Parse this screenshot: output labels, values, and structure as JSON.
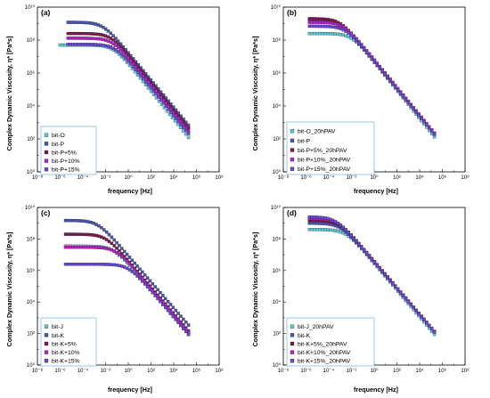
{
  "chart_data": [
    {
      "type": "scatter",
      "label": "(a)",
      "xlabel": "frequency [Hz]",
      "ylabel": "Complex Dynamic Viscosity, η* [Pa*s]",
      "xscale": "log",
      "yscale": "log",
      "xlim": [
        1e-08,
        100000000.0
      ],
      "ylim": [
        1,
        10000000000.0
      ],
      "x_ticks": [
        "10⁻⁸",
        "10⁻⁶",
        "10⁻⁴",
        "10⁻²",
        "10⁰",
        "10²",
        "10⁴",
        "10⁶",
        "10⁸"
      ],
      "y_ticks": [
        "10⁰",
        "10²",
        "10⁴",
        "10⁶",
        "10⁸",
        "10¹⁰"
      ],
      "legend_position": "bottom-left",
      "series": [
        {
          "name": "bit-O",
          "color": "#5bc8d6",
          "plateau": 50000000.0,
          "knee": 0.05,
          "slope": 0.85,
          "xmin": 1e-06,
          "xmax": 200000.0
        },
        {
          "name": "bit-P",
          "color": "#4a55b0",
          "plateau": 1200000000.0,
          "knee": 0.006,
          "slope": 0.83,
          "xmin": 5e-06,
          "xmax": 200000.0
        },
        {
          "name": "bit-P+5%",
          "color": "#7a1a4e",
          "plateau": 250000000.0,
          "knee": 0.03,
          "slope": 0.84,
          "xmin": 5e-06,
          "xmax": 200000.0
        },
        {
          "name": "bit-P+10%",
          "color": "#b522c8",
          "plateau": 130000000.0,
          "knee": 0.04,
          "slope": 0.84,
          "xmin": 5e-06,
          "xmax": 200000.0
        },
        {
          "name": "bit-P+15%",
          "color": "#6b47d6",
          "plateau": 55000000.0,
          "knee": 0.07,
          "slope": 0.84,
          "xmin": 5e-06,
          "xmax": 200000.0
        }
      ]
    },
    {
      "type": "scatter",
      "label": "(b)",
      "xlabel": "frequency [Hz]",
      "ylabel": "Complex Dynamic Viscosity, η* [Pa*s]",
      "xscale": "log",
      "yscale": "log",
      "xlim": [
        1e-08,
        100000000.0
      ],
      "ylim": [
        1,
        10000000000.0
      ],
      "x_ticks": [
        "10⁻⁸",
        "10⁻⁶",
        "10⁻⁴",
        "10⁻²",
        "10⁰",
        "10²",
        "10⁴",
        "10⁶",
        "10⁸"
      ],
      "y_ticks": [
        "10⁰",
        "10²",
        "10⁴",
        "10⁶",
        "10⁸",
        "10¹⁰"
      ],
      "legend_position": "bottom-left",
      "series": [
        {
          "name": "bit-O_20hPAV",
          "color": "#5bc8d6",
          "plateau": 250000000.0,
          "knee": 0.01,
          "slope": 0.86,
          "xmin": 2e-06,
          "xmax": 200000.0
        },
        {
          "name": "bit-P",
          "color": "#4a55b0",
          "plateau": 1500000000.0,
          "knee": 0.001,
          "slope": 0.83,
          "xmin": 2e-06,
          "xmax": 200000.0
        },
        {
          "name": "bit-P+5%_20hPAV",
          "color": "#7a1a4e",
          "plateau": 2000000000.0,
          "knee": 0.001,
          "slope": 0.84,
          "xmin": 2e-06,
          "xmax": 200000.0
        },
        {
          "name": "bit-P+10%_20hPAV",
          "color": "#b522c8",
          "plateau": 1200000000.0,
          "knee": 0.002,
          "slope": 0.84,
          "xmin": 2e-06,
          "xmax": 200000.0
        },
        {
          "name": "bit-P+15%_20hPAV",
          "color": "#6b47d6",
          "plateau": 700000000.0,
          "knee": 0.003,
          "slope": 0.84,
          "xmin": 2e-06,
          "xmax": 200000.0
        }
      ]
    },
    {
      "type": "scatter",
      "label": "(c)",
      "xlabel": "frequency [Hz]",
      "ylabel": "Complex Dynamic Viscosity, η* [Pa*s]",
      "xscale": "log",
      "yscale": "log",
      "xlim": [
        1e-08,
        100000000.0
      ],
      "ylim": [
        1,
        10000000000.0
      ],
      "x_ticks": [
        "10⁻⁸",
        "10⁻⁶",
        "10⁻⁴",
        "10⁻²",
        "10⁰",
        "10²",
        "10⁴",
        "10⁶",
        "10⁸"
      ],
      "y_ticks": [
        "10⁰",
        "10²",
        "10⁴",
        "10⁶",
        "10⁸",
        "10¹⁰"
      ],
      "legend_position": "bottom-left",
      "series": [
        {
          "name": "bit-J",
          "color": "#5bc8d6",
          "plateau": 35000000.0,
          "knee": 0.05,
          "slope": 0.85,
          "xmin": 3e-06,
          "xmax": 200000.0
        },
        {
          "name": "bit-K",
          "color": "#4a55b0",
          "plateau": 1500000000.0,
          "knee": 0.002,
          "slope": 0.83,
          "xmin": 3e-06,
          "xmax": 200000.0
        },
        {
          "name": "bit-K+5%",
          "color": "#7a1a4e",
          "plateau": 200000000.0,
          "knee": 0.01,
          "slope": 0.84,
          "xmin": 3e-06,
          "xmax": 200000.0
        },
        {
          "name": "bit-K+10%",
          "color": "#b522c8",
          "plateau": 30000000.0,
          "knee": 0.08,
          "slope": 0.84,
          "xmin": 3e-06,
          "xmax": 200000.0
        },
        {
          "name": "bit-K+15%",
          "color": "#6b47d6",
          "plateau": 2500000.0,
          "knee": 1.0,
          "slope": 0.84,
          "xmin": 3e-06,
          "xmax": 200000.0
        }
      ]
    },
    {
      "type": "scatter",
      "label": "(d)",
      "xlabel": "frequency [Hz]",
      "ylabel": "Complex Dynamic Viscosity, η* [Pa*s]",
      "xscale": "log",
      "yscale": "log",
      "xlim": [
        1e-08,
        100000000.0
      ],
      "ylim": [
        1,
        10000000000.0
      ],
      "x_ticks": [
        "10⁻⁸",
        "10⁻⁶",
        "10⁻⁴",
        "10⁻²",
        "10⁰",
        "10²",
        "10⁴",
        "10⁶",
        "10⁸"
      ],
      "y_ticks": [
        "10⁰",
        "10²",
        "10⁴",
        "10⁶",
        "10⁸",
        "10¹⁰"
      ],
      "legend_position": "bottom-left",
      "series": [
        {
          "name": "bit-J_20hPAV",
          "color": "#5bc8d6",
          "plateau": 400000000.0,
          "knee": 0.003,
          "slope": 0.85,
          "xmin": 2e-06,
          "xmax": 200000.0
        },
        {
          "name": "bit-K",
          "color": "#4a55b0",
          "plateau": 1000000000.0,
          "knee": 0.001,
          "slope": 0.83,
          "xmin": 2e-06,
          "xmax": 200000.0
        },
        {
          "name": "bit-K+5%_20hPAV",
          "color": "#7a1a4e",
          "plateau": 1500000000.0,
          "knee": 0.0008,
          "slope": 0.84,
          "xmin": 2e-06,
          "xmax": 200000.0
        },
        {
          "name": "bit-K+10%_20hPAV",
          "color": "#b522c8",
          "plateau": 2000000000.0,
          "knee": 0.0006,
          "slope": 0.84,
          "xmin": 2e-06,
          "xmax": 200000.0
        },
        {
          "name": "bit-K+15%_20hPAV",
          "color": "#6b47d6",
          "plateau": 2500000000.0,
          "knee": 0.0004,
          "slope": 0.84,
          "xmin": 2e-06,
          "xmax": 200000.0
        }
      ]
    }
  ]
}
